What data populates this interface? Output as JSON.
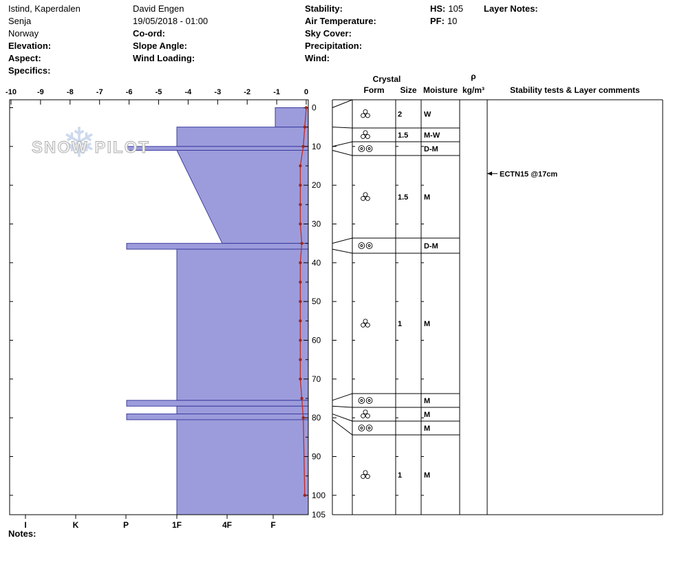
{
  "header": {
    "location": {
      "line1": "Istind, Kaperdalen",
      "line2": "Senja",
      "line3": "Norway"
    },
    "left_labels": {
      "elevation": "Elevation:",
      "aspect": "Aspect:",
      "specifics": "Specifics:"
    },
    "observer": {
      "name": "David Engen",
      "datetime": "19/05/2018 - 01:00"
    },
    "mid_labels": {
      "coord": "Co-ord:",
      "slope_angle": "Slope Angle:",
      "wind_loading": "Wind Loading:"
    },
    "weather_labels": {
      "stability": "Stability:",
      "air_temperature": "Air Temperature:",
      "sky_cover": "Sky Cover:",
      "precipitation": "Precipitation:",
      "wind": "Wind:"
    },
    "hs": {
      "label": "HS:",
      "value": "105"
    },
    "pf": {
      "label": "PF:",
      "value": "10"
    },
    "layer_notes_label": "Layer Notes:"
  },
  "watermark": {
    "text": "SNOW PILOT",
    "snowflake_icon": "❄"
  },
  "chart_data": {
    "type": "bar",
    "title": "",
    "depth_axis": {
      "ticks": [
        0,
        10,
        20,
        30,
        40,
        50,
        60,
        70,
        80,
        90,
        100,
        105
      ],
      "range": [
        0,
        105
      ]
    },
    "temperature_axis": {
      "ticks": [
        -10,
        -9,
        -8,
        -7,
        -6,
        -5,
        -4,
        -3,
        -2,
        -1,
        0
      ]
    },
    "hardness_axis": {
      "categories": [
        "I",
        "K",
        "P",
        "1F",
        "4F",
        "F"
      ]
    },
    "layers": [
      {
        "top_cm": 0,
        "bottom_cm": 5,
        "hardness": "F"
      },
      {
        "top_cm": 5,
        "bottom_cm": 10,
        "hardness": "1F"
      },
      {
        "top_cm": 10,
        "bottom_cm": 11,
        "hardness": "P"
      },
      {
        "top_cm": 11,
        "bottom_cm": 35,
        "hardness_top": "1F",
        "hardness_bottom": "4F"
      },
      {
        "top_cm": 35,
        "bottom_cm": 36.5,
        "hardness": "P"
      },
      {
        "top_cm": 36.5,
        "bottom_cm": 75.5,
        "hardness": "1F"
      },
      {
        "top_cm": 75.5,
        "bottom_cm": 77,
        "hardness": "P"
      },
      {
        "top_cm": 77,
        "bottom_cm": 79,
        "hardness": "1F"
      },
      {
        "top_cm": 79,
        "bottom_cm": 80.5,
        "hardness": "P"
      },
      {
        "top_cm": 80.5,
        "bottom_cm": 105,
        "hardness": "1F"
      }
    ],
    "temperature_profile": {
      "depths_cm": [
        0,
        5,
        10,
        15,
        20,
        25,
        30,
        35,
        40,
        45,
        50,
        55,
        60,
        65,
        70,
        75,
        80,
        100
      ],
      "temps_c": [
        0,
        -0.05,
        -0.1,
        -0.2,
        -0.2,
        -0.2,
        -0.2,
        -0.15,
        -0.2,
        -0.2,
        -0.2,
        -0.2,
        -0.2,
        -0.2,
        -0.2,
        -0.15,
        -0.1,
        -0.05
      ]
    }
  },
  "table": {
    "headers": {
      "crystal": "Crystal",
      "form": "Form",
      "size": "Size",
      "moisture": "Moisture",
      "rho": "ρ",
      "rho_unit": "kg/m³",
      "comments": "Stability tests & Layer comments"
    },
    "rows": [
      {
        "form": "melt-forms-cluster",
        "size": "2",
        "moisture": "W"
      },
      {
        "form": "melt-forms-cluster",
        "size": "1.5",
        "moisture": "M-W"
      },
      {
        "form": "melt-freeze-crust",
        "size": "",
        "moisture": "D-M"
      },
      {
        "form": "melt-forms-cluster",
        "size": "1.5",
        "moisture": "M"
      },
      {
        "form": "melt-freeze-crust",
        "size": "",
        "moisture": "D-M"
      },
      {
        "form": "melt-forms-cluster",
        "size": "1",
        "moisture": "M"
      },
      {
        "form": "melt-freeze-crust",
        "size": "",
        "moisture": "M"
      },
      {
        "form": "melt-forms-cluster",
        "size": "",
        "moisture": "M"
      },
      {
        "form": "melt-freeze-crust",
        "size": "",
        "moisture": "M"
      },
      {
        "form": "melt-forms-cluster",
        "size": "1",
        "moisture": "M"
      }
    ]
  },
  "annotations": {
    "stability_test": {
      "text": "ECTN15 @17cm",
      "depth_cm": 17
    }
  },
  "notes_label": "Notes:",
  "colors": {
    "bar_fill": "#9c9cdc",
    "bar_stroke": "#3c3c9e",
    "temp_line": "#c8281e",
    "temp_dot": "#a0241c",
    "table_border": "#000000"
  }
}
